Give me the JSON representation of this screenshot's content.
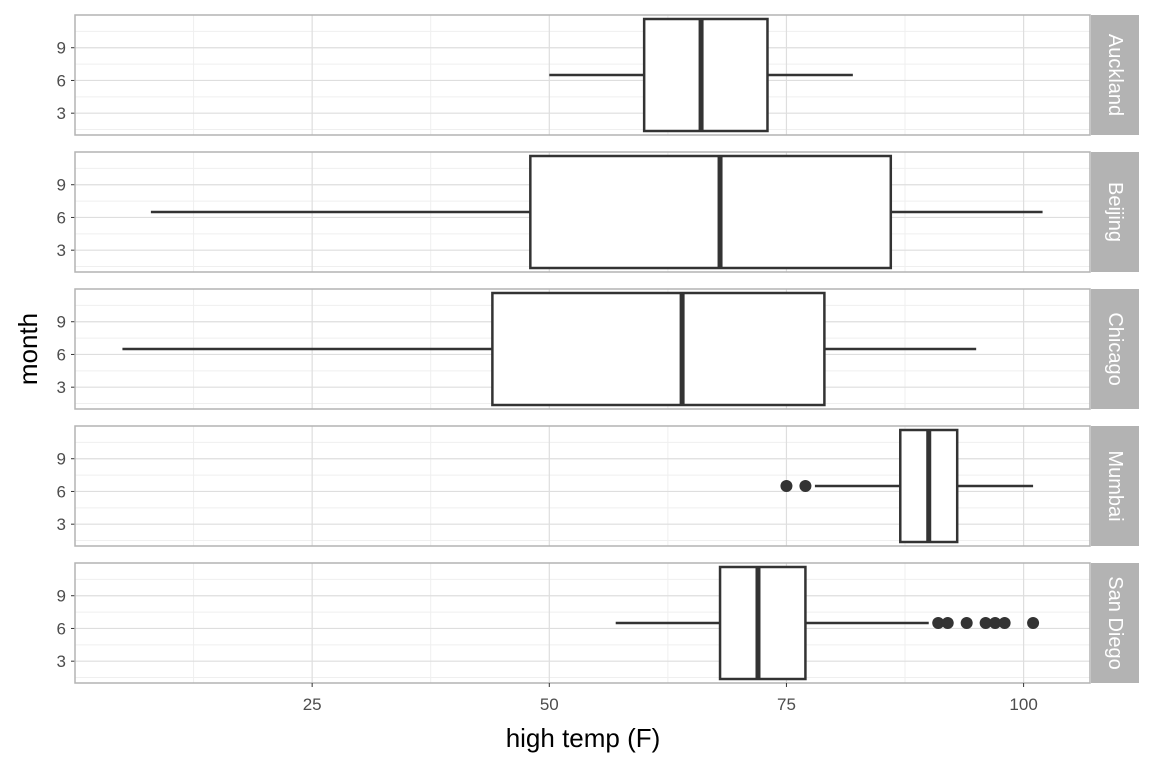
{
  "chart_data": {
    "type": "boxplot",
    "orientation": "horizontal",
    "facet_by": "city",
    "xlabel": "high temp (F)",
    "ylabel": "month",
    "x_ticks": [
      25,
      50,
      75,
      100
    ],
    "y_ticks": [
      3,
      6,
      9
    ],
    "xlim": [
      0,
      107
    ],
    "ylim": [
      1,
      12
    ],
    "grid": true,
    "panels": [
      {
        "name": "Auckland",
        "center": 6.5,
        "min": 50,
        "q1": 60,
        "median": 66,
        "q3": 73,
        "max": 82,
        "outliers": []
      },
      {
        "name": "Beijing",
        "center": 6.5,
        "min": 8,
        "q1": 48,
        "median": 68,
        "q3": 86,
        "max": 102,
        "outliers": []
      },
      {
        "name": "Chicago",
        "center": 6.5,
        "min": 5,
        "q1": 44,
        "median": 64,
        "q3": 79,
        "max": 95,
        "outliers": []
      },
      {
        "name": "Mumbai",
        "center": 6.5,
        "min": 78,
        "q1": 87,
        "median": 90,
        "q3": 93,
        "max": 101,
        "outliers": [
          75,
          77
        ]
      },
      {
        "name": "San Diego",
        "center": 6.5,
        "min": 57,
        "q1": 68,
        "median": 72,
        "q3": 77,
        "max": 90,
        "outliers": [
          91,
          92,
          94,
          96,
          97,
          98,
          101
        ]
      }
    ],
    "colors": {
      "panel_border": "#b3b3b3",
      "grid_major": "#dedede",
      "grid_minor": "#efefef",
      "strip_background": "#b3b3b3",
      "box_stroke": "#333333",
      "box_fill": "#ffffff"
    }
  }
}
